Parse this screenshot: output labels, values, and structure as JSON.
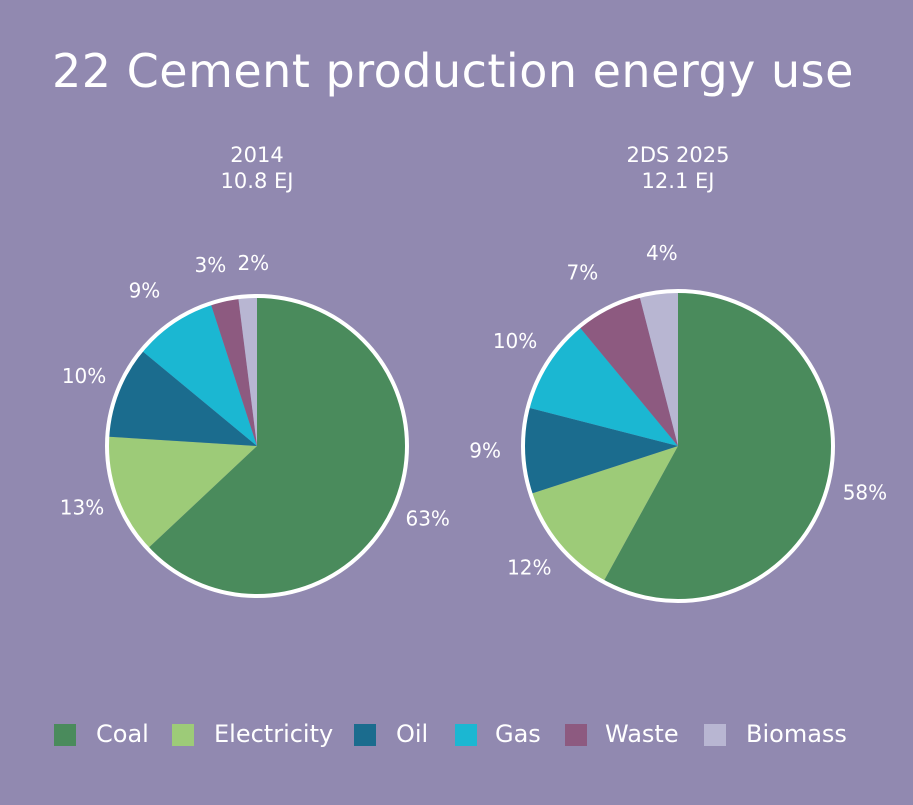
{
  "title": "22 Cement production energy use",
  "colors": {
    "Coal": "#4a8b5c",
    "Electricity": "#9dcb78",
    "Oil": "#1b6c8e",
    "Gas": "#1bb7d2",
    "Waste": "#8d5a80",
    "Biomass": "#b8b6d2",
    "outline": "#ffffff"
  },
  "chart_data": [
    {
      "type": "pie",
      "title_line1": "2014",
      "title_line2": "10.8 EJ",
      "categories": [
        "Coal",
        "Electricity",
        "Oil",
        "Gas",
        "Waste",
        "Biomass"
      ],
      "values": [
        63,
        13,
        10,
        9,
        3,
        2
      ],
      "labels": [
        "63%",
        "13%",
        "10%",
        "9%",
        "3%",
        "2%"
      ]
    },
    {
      "type": "pie",
      "title_line1": "2DS 2025",
      "title_line2": "12.1 EJ",
      "categories": [
        "Coal",
        "Electricity",
        "Oil",
        "Gas",
        "Waste",
        "Biomass"
      ],
      "values": [
        58,
        12,
        9,
        10,
        7,
        4
      ],
      "labels": [
        "58%",
        "12%",
        "9%",
        "10%",
        "7%",
        "4%"
      ]
    }
  ],
  "legend": {
    "items": [
      "Coal",
      "Electricity",
      "Oil",
      "Gas",
      "Waste",
      "Biomass"
    ],
    "placement": "bottom"
  }
}
